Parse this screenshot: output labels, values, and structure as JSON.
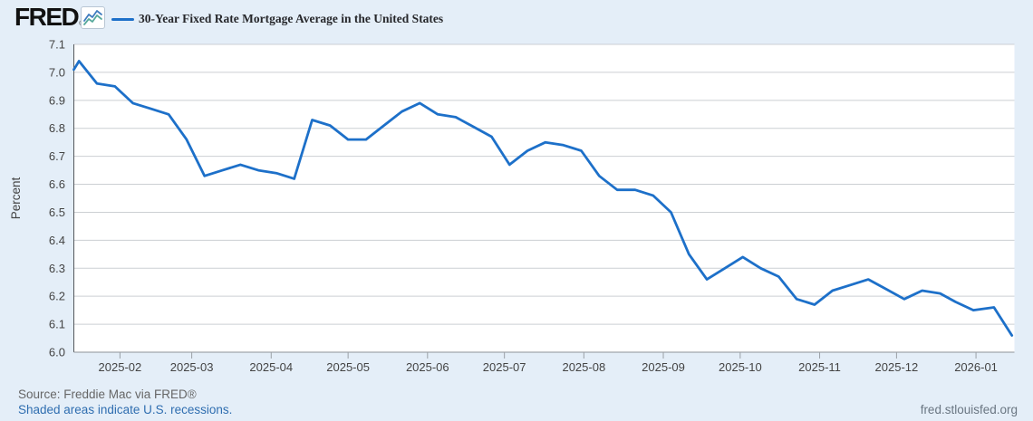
{
  "header": {
    "logo_text": "FRED",
    "logo_registered": "®"
  },
  "chart_data": {
    "type": "line",
    "title": "30-Year Fixed Rate Mortgage Average in the United States",
    "ylabel": "Percent",
    "ylim": [
      6.0,
      7.1
    ],
    "ytick_step": 0.1,
    "grid": "horizontal",
    "legend_position": "top-left",
    "x_domain": [
      "2025-01-14",
      "2026-01-16"
    ],
    "x_ticks": [
      {
        "date": "2025-02-01",
        "label": "2025-02"
      },
      {
        "date": "2025-03-01",
        "label": "2025-03"
      },
      {
        "date": "2025-04-01",
        "label": "2025-04"
      },
      {
        "date": "2025-05-01",
        "label": "2025-05"
      },
      {
        "date": "2025-06-01",
        "label": "2025-06"
      },
      {
        "date": "2025-07-01",
        "label": "2025-07"
      },
      {
        "date": "2025-08-01",
        "label": "2025-08"
      },
      {
        "date": "2025-09-01",
        "label": "2025-09"
      },
      {
        "date": "2025-10-01",
        "label": "2025-10"
      },
      {
        "date": "2025-11-01",
        "label": "2025-11"
      },
      {
        "date": "2025-12-01",
        "label": "2025-12"
      },
      {
        "date": "2026-01-01",
        "label": "2026-01"
      }
    ],
    "series": [
      {
        "name": "30-Year Fixed Rate Mortgage Average in the United States",
        "color": "#1d70c9",
        "frequency": "weekly",
        "points": [
          {
            "date": "2025-01-14",
            "value": 7.01
          },
          {
            "date": "2025-01-16",
            "value": 7.04
          },
          {
            "date": "2025-01-23",
            "value": 6.96
          },
          {
            "date": "2025-01-30",
            "value": 6.95
          },
          {
            "date": "2025-02-06",
            "value": 6.89
          },
          {
            "date": "2025-02-13",
            "value": 6.87
          },
          {
            "date": "2025-02-20",
            "value": 6.85
          },
          {
            "date": "2025-02-27",
            "value": 6.76
          },
          {
            "date": "2025-03-06",
            "value": 6.63
          },
          {
            "date": "2025-03-13",
            "value": 6.65
          },
          {
            "date": "2025-03-20",
            "value": 6.67
          },
          {
            "date": "2025-03-27",
            "value": 6.65
          },
          {
            "date": "2025-04-03",
            "value": 6.64
          },
          {
            "date": "2025-04-10",
            "value": 6.62
          },
          {
            "date": "2025-04-17",
            "value": 6.83
          },
          {
            "date": "2025-04-24",
            "value": 6.81
          },
          {
            "date": "2025-05-01",
            "value": 6.76
          },
          {
            "date": "2025-05-08",
            "value": 6.76
          },
          {
            "date": "2025-05-15",
            "value": 6.81
          },
          {
            "date": "2025-05-22",
            "value": 6.86
          },
          {
            "date": "2025-05-29",
            "value": 6.89
          },
          {
            "date": "2025-06-05",
            "value": 6.85
          },
          {
            "date": "2025-06-12",
            "value": 6.84
          },
          {
            "date": "2025-06-18",
            "value": 6.81
          },
          {
            "date": "2025-06-26",
            "value": 6.77
          },
          {
            "date": "2025-07-03",
            "value": 6.67
          },
          {
            "date": "2025-07-10",
            "value": 6.72
          },
          {
            "date": "2025-07-17",
            "value": 6.75
          },
          {
            "date": "2025-07-24",
            "value": 6.74
          },
          {
            "date": "2025-07-31",
            "value": 6.72
          },
          {
            "date": "2025-08-07",
            "value": 6.63
          },
          {
            "date": "2025-08-14",
            "value": 6.58
          },
          {
            "date": "2025-08-21",
            "value": 6.58
          },
          {
            "date": "2025-08-28",
            "value": 6.56
          },
          {
            "date": "2025-09-04",
            "value": 6.5
          },
          {
            "date": "2025-09-11",
            "value": 6.35
          },
          {
            "date": "2025-09-18",
            "value": 6.26
          },
          {
            "date": "2025-09-25",
            "value": 6.3
          },
          {
            "date": "2025-10-02",
            "value": 6.34
          },
          {
            "date": "2025-10-09",
            "value": 6.3
          },
          {
            "date": "2025-10-16",
            "value": 6.27
          },
          {
            "date": "2025-10-23",
            "value": 6.19
          },
          {
            "date": "2025-10-30",
            "value": 6.17
          },
          {
            "date": "2025-11-06",
            "value": 6.22
          },
          {
            "date": "2025-11-13",
            "value": 6.24
          },
          {
            "date": "2025-11-20",
            "value": 6.26
          },
          {
            "date": "2025-11-26",
            "value": 6.23
          },
          {
            "date": "2025-12-04",
            "value": 6.19
          },
          {
            "date": "2025-12-11",
            "value": 6.22
          },
          {
            "date": "2025-12-18",
            "value": 6.21
          },
          {
            "date": "2025-12-24",
            "value": 6.18
          },
          {
            "date": "2025-12-31",
            "value": 6.15
          },
          {
            "date": "2026-01-08",
            "value": 6.16
          },
          {
            "date": "2026-01-15",
            "value": 6.06
          }
        ]
      }
    ]
  },
  "footer": {
    "source": "Source: Freddie Mac via FRED®",
    "recessions_link": "Shaded areas indicate U.S. recessions.",
    "site_link": "fred.stlouisfed.org"
  },
  "colors": {
    "background": "#e4eef8",
    "plot_background": "#ffffff",
    "gridline": "#cccfd3",
    "axis_line_left": "#55585c",
    "axis_line_bottom": "#8e9297",
    "tick": "#9aa0a6",
    "axis_text": "#444444",
    "series_line": "#1d70c9",
    "link": "#2f6eb0",
    "muted_text": "#666666"
  }
}
